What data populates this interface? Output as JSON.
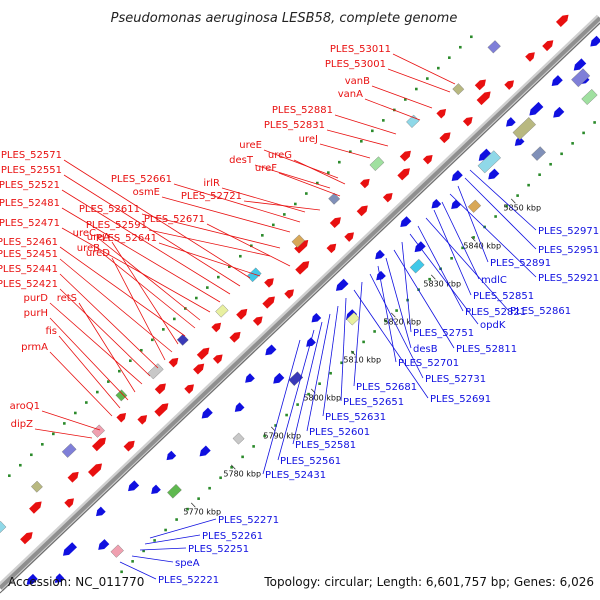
{
  "title": "Pseudomonas aeruginosa LESB58, complete genome",
  "footer": {
    "accession": "Accession: NC_011770",
    "summary": "Topology: circular; Length: 6,601,757 bp; Genes: 6,026"
  },
  "colors": {
    "forward": "#e81010",
    "reverse": "#1010e0",
    "backbone": "#9a9a9a",
    "dots": "#2a8a2a"
  },
  "ticks": [
    "5770 kbp",
    "5780 kbp",
    "5790 kbp",
    "5800 kbp",
    "5810 kbp",
    "5820 kbp",
    "5830 kbp",
    "5840 kbp",
    "5850 kbp"
  ],
  "forward_labels": [
    "PLES_53011",
    "PLES_53001",
    "vanB",
    "vanA",
    "PLES_52881",
    "PLES_52831",
    "ureJ",
    "ureE",
    "ureG",
    "desT",
    "ureF",
    "irlR",
    "PLES_52661",
    "osmE",
    "PLES_52721",
    "PLES_52571",
    "PLES_52551",
    "PLES_52521",
    "PLES_52611",
    "PLES_52481",
    "PLES_52591",
    "PLES_52671",
    "PLES_52471",
    "ureC",
    "ureB",
    "PLES_52641",
    "PLES_52461",
    "ureA",
    "PLES_52451",
    "ureD",
    "PLES_52441",
    "PLES_52421",
    "purD",
    "retS",
    "purH",
    "fis",
    "prmA",
    "aroQ1",
    "dipZ"
  ],
  "reverse_labels": [
    "PLES_52971",
    "PLES_52951",
    "PLES_52891",
    "PLES_52921",
    "mdlC",
    "PLES_52851",
    "PLES_52861",
    "PLES_52821",
    "opdK",
    "PLES_52751",
    "PLES_52811",
    "desB",
    "PLES_52701",
    "PLES_52731",
    "PLES_52681",
    "PLES_52691",
    "PLES_52651",
    "PLES_52631",
    "PLES_52601",
    "PLES_52581",
    "PLES_52561",
    "PLES_52431",
    "PLES_52271",
    "PLES_52261",
    "PLES_52251",
    "speA",
    "PLES_52221"
  ]
}
